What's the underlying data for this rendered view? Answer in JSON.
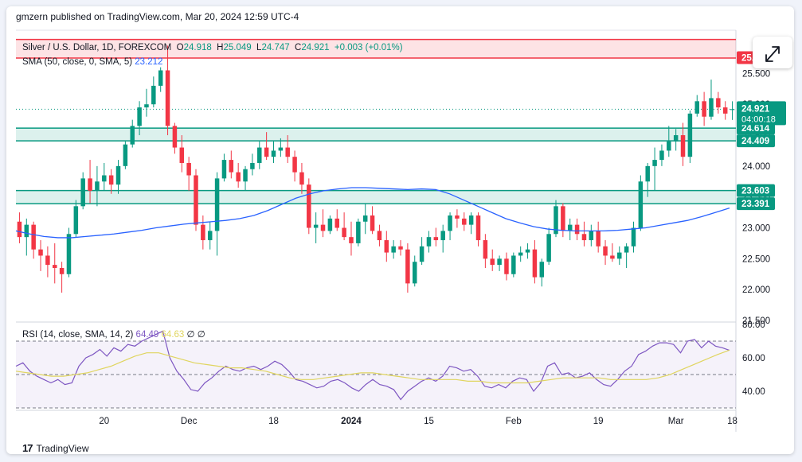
{
  "header": {
    "published": "gmzern published on TradingView.com, Mar 20, 2024 12:59 UTC-4"
  },
  "legend": {
    "symbol": "Silver / U.S. Dollar, 1D, FOREXCOM",
    "ohlc": [
      {
        "label": "O",
        "value": "24.918"
      },
      {
        "label": "H",
        "value": "25.049"
      },
      {
        "label": "L",
        "value": "24.747"
      },
      {
        "label": "C",
        "value": "24.921"
      }
    ],
    "change": "+0.003 (+0.01%)",
    "sma_label": "SMA (50, close, 0, SMA, 5)",
    "sma_value": "23.212",
    "rsi_label": "RSI (14, close, SMA, 14, 2)",
    "rsi_value": "64.49",
    "rsi_sma_value": "64.63",
    "rsi_extra": "∅ ∅"
  },
  "footer": {
    "brand_mark": "17",
    "brand": "TradingView"
  },
  "icons": {
    "expand": "expand-arrows-icon",
    "logo": "tradingview-logo-icon"
  },
  "colors": {
    "up": "#089981",
    "down": "#f23645",
    "sma": "#2962ff",
    "rsi": "#7e57c2",
    "rsi_sma": "#e0d55f",
    "resistance_zone": "#f23645",
    "support_zone": "#089981"
  },
  "chart_data": [
    {
      "type": "candlestick",
      "title": "Silver / U.S. Dollar, 1D, FOREXCOM",
      "x_ticks": [
        "20",
        "Dec",
        "18",
        "2024",
        "15",
        "Feb",
        "19",
        "Mar",
        "18"
      ],
      "y_ticks": [
        "25.500",
        "25.000",
        "24.500",
        "24.000",
        "23.500",
        "23.000",
        "22.500",
        "22.000",
        "21.500"
      ],
      "ylim": [
        21.5,
        26.2
      ],
      "price_labels": {
        "upper_zone": "25.756",
        "last_price": "24.921",
        "countdown": "04:00:18",
        "zone_a_top": "24.614",
        "zone_a_bottom": "24.409",
        "zone_b_top": "23.603",
        "zone_b_bottom": "23.391"
      },
      "zones": [
        {
          "kind": "resistance",
          "low": 25.75,
          "high": 26.05
        },
        {
          "kind": "support",
          "low": 24.409,
          "high": 24.614
        },
        {
          "kind": "support",
          "low": 23.391,
          "high": 23.603
        }
      ],
      "last_price": 24.921,
      "candles": [
        {
          "o": 23.1,
          "h": 23.25,
          "l": 22.75,
          "c": 22.85
        },
        {
          "o": 22.85,
          "h": 23.15,
          "l": 22.55,
          "c": 23.05
        },
        {
          "o": 23.05,
          "h": 23.1,
          "l": 22.5,
          "c": 22.65
        },
        {
          "o": 22.65,
          "h": 22.8,
          "l": 22.3,
          "c": 22.55
        },
        {
          "o": 22.55,
          "h": 22.7,
          "l": 22.2,
          "c": 22.4
        },
        {
          "o": 22.4,
          "h": 22.75,
          "l": 22.1,
          "c": 22.35
        },
        {
          "o": 22.35,
          "h": 22.45,
          "l": 21.95,
          "c": 22.25
        },
        {
          "o": 22.25,
          "h": 23.0,
          "l": 22.2,
          "c": 22.9
        },
        {
          "o": 22.9,
          "h": 23.45,
          "l": 22.85,
          "c": 23.35
        },
        {
          "o": 23.35,
          "h": 23.9,
          "l": 23.3,
          "c": 23.8
        },
        {
          "o": 23.8,
          "h": 24.1,
          "l": 23.4,
          "c": 23.6
        },
        {
          "o": 23.6,
          "h": 24.0,
          "l": 23.35,
          "c": 23.75
        },
        {
          "o": 23.75,
          "h": 24.05,
          "l": 23.6,
          "c": 23.85
        },
        {
          "o": 23.85,
          "h": 23.95,
          "l": 23.55,
          "c": 23.7
        },
        {
          "o": 23.7,
          "h": 24.1,
          "l": 23.55,
          "c": 24.0
        },
        {
          "o": 24.0,
          "h": 24.4,
          "l": 23.95,
          "c": 24.35
        },
        {
          "o": 24.35,
          "h": 24.75,
          "l": 24.3,
          "c": 24.65
        },
        {
          "o": 24.65,
          "h": 25.05,
          "l": 24.5,
          "c": 24.95
        },
        {
          "o": 24.95,
          "h": 25.25,
          "l": 24.8,
          "c": 25.0
        },
        {
          "o": 25.0,
          "h": 25.45,
          "l": 24.95,
          "c": 25.3
        },
        {
          "o": 25.3,
          "h": 25.6,
          "l": 25.2,
          "c": 25.55
        },
        {
          "o": 25.55,
          "h": 25.95,
          "l": 24.5,
          "c": 24.65
        },
        {
          "o": 24.65,
          "h": 24.7,
          "l": 24.2,
          "c": 24.3
        },
        {
          "o": 24.3,
          "h": 24.5,
          "l": 23.9,
          "c": 24.05
        },
        {
          "o": 24.05,
          "h": 24.15,
          "l": 23.6,
          "c": 23.85
        },
        {
          "o": 23.85,
          "h": 23.95,
          "l": 22.95,
          "c": 23.05
        },
        {
          "o": 23.05,
          "h": 23.2,
          "l": 22.65,
          "c": 22.8
        },
        {
          "o": 22.8,
          "h": 23.1,
          "l": 22.65,
          "c": 22.95
        },
        {
          "o": 22.95,
          "h": 23.9,
          "l": 22.55,
          "c": 23.8
        },
        {
          "o": 23.8,
          "h": 24.2,
          "l": 23.75,
          "c": 24.1
        },
        {
          "o": 24.1,
          "h": 24.25,
          "l": 23.8,
          "c": 23.9
        },
        {
          "o": 23.9,
          "h": 24.05,
          "l": 23.65,
          "c": 23.75
        },
        {
          "o": 23.75,
          "h": 24.0,
          "l": 23.6,
          "c": 23.95
        },
        {
          "o": 23.95,
          "h": 24.2,
          "l": 23.85,
          "c": 24.05
        },
        {
          "o": 24.05,
          "h": 24.4,
          "l": 23.95,
          "c": 24.3
        },
        {
          "o": 24.3,
          "h": 24.55,
          "l": 24.1,
          "c": 24.15
        },
        {
          "o": 24.15,
          "h": 24.4,
          "l": 24.05,
          "c": 24.25
        },
        {
          "o": 24.25,
          "h": 24.45,
          "l": 24.15,
          "c": 24.3
        },
        {
          "o": 24.3,
          "h": 24.5,
          "l": 24.05,
          "c": 24.15
        },
        {
          "o": 24.15,
          "h": 24.25,
          "l": 23.75,
          "c": 23.9
        },
        {
          "o": 23.9,
          "h": 24.05,
          "l": 23.55,
          "c": 23.7
        },
        {
          "o": 23.7,
          "h": 23.8,
          "l": 22.9,
          "c": 23.0
        },
        {
          "o": 23.0,
          "h": 23.25,
          "l": 22.75,
          "c": 23.05
        },
        {
          "o": 23.05,
          "h": 23.3,
          "l": 22.85,
          "c": 22.95
        },
        {
          "o": 22.95,
          "h": 23.2,
          "l": 22.9,
          "c": 23.15
        },
        {
          "o": 23.15,
          "h": 23.3,
          "l": 22.95,
          "c": 23.0
        },
        {
          "o": 23.0,
          "h": 23.25,
          "l": 22.8,
          "c": 22.85
        },
        {
          "o": 22.85,
          "h": 23.1,
          "l": 22.55,
          "c": 22.75
        },
        {
          "o": 22.75,
          "h": 23.15,
          "l": 22.7,
          "c": 23.1
        },
        {
          "o": 23.1,
          "h": 23.4,
          "l": 22.9,
          "c": 23.2
        },
        {
          "o": 23.2,
          "h": 23.35,
          "l": 22.9,
          "c": 22.95
        },
        {
          "o": 22.95,
          "h": 23.05,
          "l": 22.7,
          "c": 22.8
        },
        {
          "o": 22.8,
          "h": 22.95,
          "l": 22.45,
          "c": 22.6
        },
        {
          "o": 22.6,
          "h": 22.8,
          "l": 22.5,
          "c": 22.7
        },
        {
          "o": 22.7,
          "h": 22.8,
          "l": 22.55,
          "c": 22.65
        },
        {
          "o": 22.65,
          "h": 22.75,
          "l": 21.95,
          "c": 22.1
        },
        {
          "o": 22.1,
          "h": 22.55,
          "l": 22.05,
          "c": 22.45
        },
        {
          "o": 22.45,
          "h": 22.85,
          "l": 22.4,
          "c": 22.7
        },
        {
          "o": 22.7,
          "h": 22.95,
          "l": 22.6,
          "c": 22.85
        },
        {
          "o": 22.85,
          "h": 23.0,
          "l": 22.7,
          "c": 22.8
        },
        {
          "o": 22.8,
          "h": 23.05,
          "l": 22.6,
          "c": 22.95
        },
        {
          "o": 22.95,
          "h": 23.25,
          "l": 22.8,
          "c": 23.2
        },
        {
          "o": 23.2,
          "h": 23.3,
          "l": 23.0,
          "c": 23.15
        },
        {
          "o": 23.15,
          "h": 23.25,
          "l": 22.95,
          "c": 23.05
        },
        {
          "o": 23.05,
          "h": 23.25,
          "l": 22.9,
          "c": 23.2
        },
        {
          "o": 23.2,
          "h": 23.25,
          "l": 22.7,
          "c": 22.8
        },
        {
          "o": 22.8,
          "h": 22.9,
          "l": 22.35,
          "c": 22.5
        },
        {
          "o": 22.5,
          "h": 22.65,
          "l": 22.3,
          "c": 22.4
        },
        {
          "o": 22.4,
          "h": 22.55,
          "l": 22.3,
          "c": 22.5
        },
        {
          "o": 22.5,
          "h": 22.6,
          "l": 22.15,
          "c": 22.25
        },
        {
          "o": 22.25,
          "h": 22.6,
          "l": 22.2,
          "c": 22.55
        },
        {
          "o": 22.55,
          "h": 22.7,
          "l": 22.45,
          "c": 22.6
        },
        {
          "o": 22.6,
          "h": 22.75,
          "l": 22.5,
          "c": 22.65
        },
        {
          "o": 22.65,
          "h": 22.8,
          "l": 22.1,
          "c": 22.2
        },
        {
          "o": 22.2,
          "h": 22.5,
          "l": 22.05,
          "c": 22.45
        },
        {
          "o": 22.45,
          "h": 23.0,
          "l": 22.4,
          "c": 22.9
        },
        {
          "o": 22.9,
          "h": 23.45,
          "l": 22.85,
          "c": 23.35
        },
        {
          "o": 23.35,
          "h": 23.4,
          "l": 22.85,
          "c": 22.95
        },
        {
          "o": 22.95,
          "h": 23.15,
          "l": 22.8,
          "c": 23.05
        },
        {
          "o": 23.05,
          "h": 23.15,
          "l": 22.8,
          "c": 22.9
        },
        {
          "o": 22.9,
          "h": 23.1,
          "l": 22.7,
          "c": 22.8
        },
        {
          "o": 22.8,
          "h": 23.05,
          "l": 22.7,
          "c": 22.95
        },
        {
          "o": 22.95,
          "h": 23.1,
          "l": 22.6,
          "c": 22.7
        },
        {
          "o": 22.7,
          "h": 22.8,
          "l": 22.4,
          "c": 22.55
        },
        {
          "o": 22.55,
          "h": 22.75,
          "l": 22.45,
          "c": 22.5
        },
        {
          "o": 22.5,
          "h": 22.7,
          "l": 22.4,
          "c": 22.6
        },
        {
          "o": 22.6,
          "h": 22.75,
          "l": 22.35,
          "c": 22.7
        },
        {
          "o": 22.7,
          "h": 23.1,
          "l": 22.6,
          "c": 23.0
        },
        {
          "o": 23.0,
          "h": 23.85,
          "l": 22.95,
          "c": 23.75
        },
        {
          "o": 23.75,
          "h": 24.05,
          "l": 23.5,
          "c": 24.0
        },
        {
          "o": 24.0,
          "h": 24.3,
          "l": 23.6,
          "c": 24.1
        },
        {
          "o": 24.1,
          "h": 24.35,
          "l": 24.0,
          "c": 24.25
        },
        {
          "o": 24.25,
          "h": 24.65,
          "l": 24.15,
          "c": 24.4
        },
        {
          "o": 24.4,
          "h": 24.6,
          "l": 24.25,
          "c": 24.5
        },
        {
          "o": 24.5,
          "h": 24.7,
          "l": 24.0,
          "c": 24.15
        },
        {
          "o": 24.15,
          "h": 24.9,
          "l": 24.05,
          "c": 24.85
        },
        {
          "o": 24.85,
          "h": 25.15,
          "l": 24.8,
          "c": 25.05
        },
        {
          "o": 25.05,
          "h": 25.2,
          "l": 24.65,
          "c": 24.8
        },
        {
          "o": 24.8,
          "h": 25.4,
          "l": 24.75,
          "c": 25.1
        },
        {
          "o": 25.1,
          "h": 25.2,
          "l": 24.85,
          "c": 24.95
        },
        {
          "o": 24.95,
          "h": 25.05,
          "l": 24.75,
          "c": 24.85
        },
        {
          "o": 24.918,
          "h": 25.049,
          "l": 24.747,
          "c": 24.921
        }
      ],
      "sma": [
        22.95,
        22.9,
        22.86,
        22.84,
        22.84,
        22.86,
        22.88,
        22.9,
        22.93,
        22.96,
        23.0,
        23.03,
        23.06,
        23.08,
        23.1,
        23.12,
        23.15,
        23.2,
        23.28,
        23.38,
        23.48,
        23.55,
        23.6,
        23.63,
        23.65,
        23.65,
        23.64,
        23.63,
        23.62,
        23.63,
        23.62,
        23.55,
        23.45,
        23.35,
        23.25,
        23.15,
        23.08,
        23.02,
        22.98,
        22.96,
        22.95,
        22.95,
        22.95,
        22.96,
        22.98,
        23.0,
        23.04,
        23.08,
        23.12,
        23.18,
        23.25,
        23.32
      ]
    },
    {
      "type": "line",
      "title": "RSI (14, close, SMA, 14, 2)",
      "y_ticks": [
        "80.00",
        "60.00",
        "40.00"
      ],
      "ylim": [
        30,
        80
      ],
      "bands": [
        70,
        50,
        30
      ],
      "rsi": [
        55,
        57,
        52,
        49,
        47,
        45,
        47,
        44,
        45,
        55,
        60,
        62,
        65,
        61,
        66,
        64,
        68,
        67,
        70,
        72,
        74,
        76,
        60,
        52,
        47,
        41,
        40,
        45,
        48,
        52,
        55,
        53,
        52,
        54,
        55,
        53,
        55,
        58,
        56,
        52,
        47,
        46,
        44,
        42,
        43,
        46,
        47,
        45,
        42,
        40,
        44,
        47,
        44,
        43,
        41,
        35,
        40,
        43,
        46,
        48,
        46,
        49,
        55,
        54,
        52,
        53,
        49,
        43,
        42,
        44,
        42,
        46,
        48,
        47,
        40,
        45,
        55,
        57,
        50,
        51,
        48,
        49,
        51,
        47,
        44,
        43,
        47,
        52,
        55,
        62,
        64,
        67,
        69,
        69,
        68,
        63,
        70,
        71,
        66,
        70,
        67,
        66,
        64.49
      ],
      "rsi_sma": [
        52,
        51,
        50,
        49,
        49,
        50,
        51,
        53,
        55,
        58,
        61,
        63,
        63,
        61,
        59,
        57,
        56,
        55,
        54,
        54,
        53,
        52,
        50,
        48,
        47,
        47,
        48,
        49,
        50,
        51,
        51,
        50,
        49,
        48,
        47,
        47,
        47,
        47,
        46,
        46,
        45,
        45,
        45,
        45,
        46,
        47,
        48,
        48,
        48,
        48,
        47,
        47,
        47,
        47,
        48,
        50,
        53,
        56,
        59,
        62,
        64.63
      ]
    }
  ]
}
